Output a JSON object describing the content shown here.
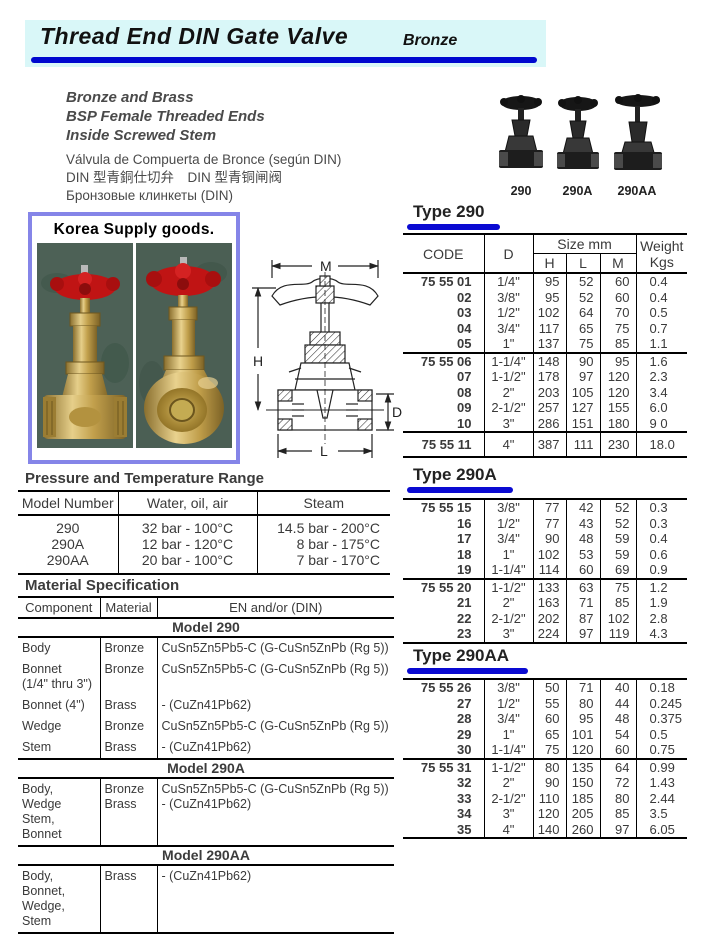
{
  "page": {
    "title": "Thread End DIN Gate Valve",
    "subtitle": "Bronze"
  },
  "intro": {
    "bold_lines": [
      "Bronze and Brass",
      "BSP Female Threaded Ends",
      "Inside Screwed Stem"
    ],
    "plain_lines": [
      "Válvula de Compuerta de Bronce (según DIN)",
      "DIN 型青銅仕切弁　DIN 型青铜闸阀",
      "Бронзовые клинкеты (DIN)"
    ]
  },
  "thumbnails": {
    "labels": [
      "290",
      "290A",
      "290AA"
    ]
  },
  "korea_box": {
    "title": "Korea Supply goods."
  },
  "diagram": {
    "labels": {
      "m": "M",
      "h": "H",
      "d": "D",
      "l": "L"
    }
  },
  "size_tables": {
    "header": {
      "code": "CODE",
      "d": "D",
      "size": "Size mm",
      "h": "H",
      "l": "L",
      "m": "M",
      "weight_1": "Weight",
      "weight_2": "Kgs"
    },
    "tables": [
      {
        "name": "Type 290",
        "groups": [
          [
            [
              "75 55 01",
              "1/4\"",
              "95",
              "52",
              "60",
              "0.4"
            ],
            [
              "02",
              "3/8\"",
              "95",
              "52",
              "60",
              "0.4"
            ],
            [
              "03",
              "1/2\"",
              "102",
              "64",
              "70",
              "0.5"
            ],
            [
              "04",
              "3/4\"",
              "117",
              "65",
              "75",
              "0.7"
            ],
            [
              "05",
              "1\"",
              "137",
              "75",
              "85",
              "1.1"
            ]
          ],
          [
            [
              "75 55 06",
              "1-1/4\"",
              "148",
              "90",
              "95",
              "1.6"
            ],
            [
              "07",
              "1-1/2\"",
              "178",
              "97",
              "120",
              "2.3"
            ],
            [
              "08",
              "2\"",
              "203",
              "105",
              "120",
              "3.4"
            ],
            [
              "09",
              "2-1/2\"",
              "257",
              "127",
              "155",
              "6.0"
            ],
            [
              "10",
              "3\"",
              "286",
              "151",
              "180",
              "9 0"
            ]
          ],
          [
            [
              "75 55 11",
              "4\"",
              "387",
              "111",
              "230",
              "18.0"
            ]
          ]
        ]
      },
      {
        "name": "Type 290A",
        "groups": [
          [
            [
              "75 55 15",
              "3/8\"",
              "77",
              "42",
              "52",
              "0.3"
            ],
            [
              "16",
              "1/2\"",
              "77",
              "43",
              "52",
              "0.3"
            ],
            [
              "17",
              "3/4\"",
              "90",
              "48",
              "59",
              "0.4"
            ],
            [
              "18",
              "1\"",
              "102",
              "53",
              "59",
              "0.6"
            ],
            [
              "19",
              "1-1/4\"",
              "114",
              "60",
              "69",
              "0.9"
            ]
          ],
          [
            [
              "75 55 20",
              "1-1/2\"",
              "133",
              "63",
              "75",
              "1.2"
            ],
            [
              "21",
              "2\"",
              "163",
              "71",
              "85",
              "1.9"
            ],
            [
              "22",
              "2-1/2\"",
              "202",
              "87",
              "102",
              "2.8"
            ],
            [
              "23",
              "3\"",
              "224",
              "97",
              "119",
              "4.3"
            ]
          ]
        ]
      },
      {
        "name": "Type 290AA",
        "groups": [
          [
            [
              "75 55 26",
              "3/8\"",
              "50",
              "71",
              "40",
              "0.18"
            ],
            [
              "27",
              "1/2\"",
              "55",
              "80",
              "44",
              "0.245"
            ],
            [
              "28",
              "3/4\"",
              "60",
              "95",
              "48",
              "0.375"
            ],
            [
              "29",
              "1\"",
              "65",
              "101",
              "54",
              "0.5"
            ],
            [
              "30",
              "1-1/4\"",
              "75",
              "120",
              "60",
              "0.75"
            ]
          ],
          [
            [
              "75 55 31",
              "1-1/2\"",
              "80",
              "135",
              "64",
              "0.99"
            ],
            [
              "32",
              "2\"",
              "90",
              "150",
              "72",
              "1.43"
            ],
            [
              "33",
              "2-1/2\"",
              "110",
              "185",
              "80",
              "2.44"
            ],
            [
              "34",
              "3\"",
              "120",
              "205",
              "85",
              "3.5"
            ],
            [
              "35",
              "4\"",
              "140",
              "260",
              "97",
              "6.05"
            ]
          ]
        ]
      }
    ]
  },
  "pressure_table": {
    "title": "Pressure and Temperature Range",
    "columns": [
      "Model Number",
      "Water, oil, air",
      "Steam"
    ],
    "rows": [
      [
        "290",
        "32 bar - 100°C",
        "14.5 bar - 200°C"
      ],
      [
        "290A",
        "12 bar - 120°C",
        "8 bar - 175°C"
      ],
      [
        "290AA",
        "20 bar - 100°C",
        "7 bar - 170°C"
      ]
    ]
  },
  "material_table": {
    "title": "Material Specification",
    "columns": [
      "Component",
      "Material",
      "EN and/or (DIN)"
    ],
    "sections": [
      {
        "title": "Model 290",
        "rows": [
          [
            "Body",
            "Bronze",
            "CuSn5Zn5Pb5-C (G-CuSn5ZnPb (Rg 5))"
          ],
          [
            "Bonnet\n(1/4\" thru 3\")",
            "Bronze",
            "CuSn5Zn5Pb5-C (G-CuSn5ZnPb (Rg 5))"
          ],
          [
            "Bonnet (4\")",
            "Brass",
            "- (CuZn41Pb62)"
          ],
          [
            "Wedge",
            "Bronze",
            "CuSn5Zn5Pb5-C (G-CuSn5ZnPb (Rg 5))"
          ],
          [
            "Stem",
            "Brass",
            "- (CuZn41Pb62)"
          ]
        ]
      },
      {
        "title": "Model 290A",
        "rows": [
          [
            "Body, Wedge\nStem, Bonnet",
            "Bronze\nBrass",
            "CuSn5Zn5Pb5-C (G-CuSn5ZnPb (Rg 5))\n- (CuZn41Pb62)"
          ]
        ]
      },
      {
        "title": "Model 290AA",
        "rows": [
          [
            "Body, Bonnet,\nWedge, Stem",
            "Brass",
            "- (CuZn41Pb62)"
          ]
        ]
      }
    ]
  },
  "colors": {
    "accent_blue": "#0a0ad2",
    "title_bg": "#d9f7f8",
    "korea_border": "#8585e8",
    "wheel_red": "#c01414",
    "brass": "#c2a04c"
  }
}
